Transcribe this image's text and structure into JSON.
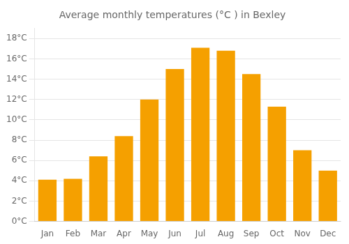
{
  "chart_data": {
    "type": "bar",
    "title": "Average monthly temperatures (°C ) in Bexley",
    "categories": [
      "Jan",
      "Feb",
      "Mar",
      "Apr",
      "May",
      "Jun",
      "Jul",
      "Aug",
      "Sep",
      "Oct",
      "Nov",
      "Dec"
    ],
    "values": [
      4.1,
      4.2,
      6.4,
      8.4,
      12.0,
      15.0,
      17.1,
      16.8,
      14.5,
      11.3,
      7.0,
      5.0
    ],
    "color": "#F5A000",
    "ylim": [
      0,
      19
    ],
    "yticks": [
      {
        "value": 0,
        "label": "0°C"
      },
      {
        "value": 2,
        "label": "2°C"
      },
      {
        "value": 4,
        "label": "4°C"
      },
      {
        "value": 6,
        "label": "6°C"
      },
      {
        "value": 8,
        "label": "8°C"
      },
      {
        "value": 10,
        "label": "10°C"
      },
      {
        "value": 12,
        "label": "12°C"
      },
      {
        "value": 14,
        "label": "14°C"
      },
      {
        "value": 16,
        "label": "16°C"
      },
      {
        "value": 18,
        "label": "18°C"
      }
    ],
    "grid": true
  }
}
